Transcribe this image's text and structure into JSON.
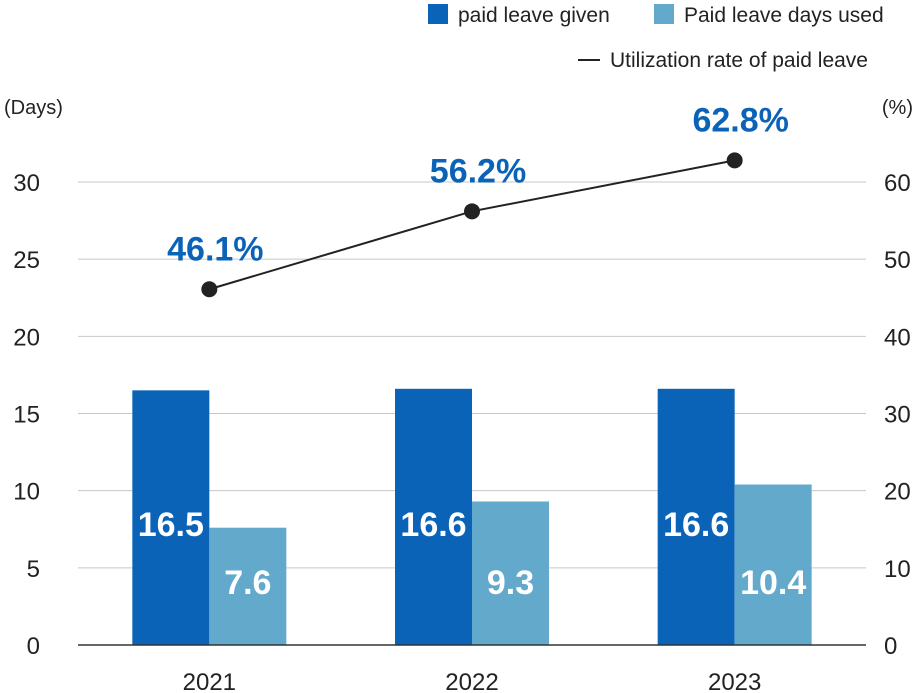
{
  "chart_data": {
    "type": "bar",
    "categories": [
      "2021",
      "2022",
      "2023"
    ],
    "series": [
      {
        "name": "paid leave given",
        "kind": "bar",
        "axis": "left",
        "color": "#0b63b8",
        "values": [
          16.5,
          16.6,
          16.6
        ]
      },
      {
        "name": "Paid leave days used",
        "kind": "bar",
        "axis": "left",
        "color": "#63a9cc",
        "values": [
          7.6,
          9.3,
          10.4
        ]
      },
      {
        "name": "Utilization rate of paid leave",
        "kind": "line",
        "axis": "right",
        "color": "#222222",
        "values": [
          46.1,
          56.2,
          62.8
        ],
        "labels": [
          "46.1%",
          "56.2%",
          "62.8%"
        ],
        "label_color": "#0b63b8"
      }
    ],
    "y_left": {
      "unit": "(Days)",
      "ylim": [
        0,
        30
      ],
      "ticks": [
        0,
        5,
        10,
        15,
        20,
        25,
        30
      ]
    },
    "y_right": {
      "unit": "(%)",
      "ylim": [
        0,
        60
      ],
      "ticks": [
        0,
        10,
        20,
        30,
        40,
        50,
        60
      ]
    },
    "grid": true,
    "legend_position": "top-right"
  }
}
